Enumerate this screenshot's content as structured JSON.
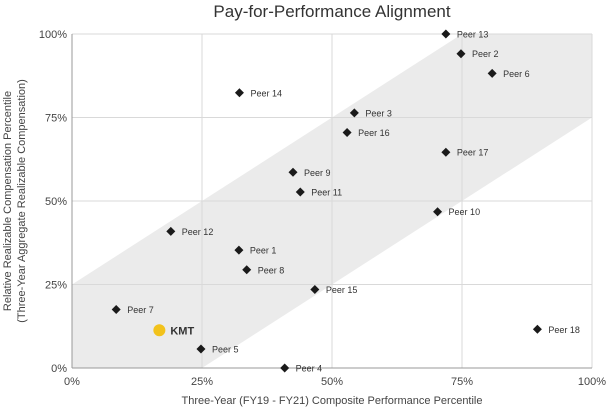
{
  "chart_data": {
    "type": "scatter",
    "title": "Pay-for-Performance Alignment",
    "xlabel": "Three-Year (FY19 - FY21) Composite Performance Percentile",
    "ylabel": [
      "Relative Realizable Compensation Percentile",
      "(Three-Year Aggregate Realizable Compensation)"
    ],
    "xlim": [
      0,
      100
    ],
    "ylim": [
      0,
      100
    ],
    "x_ticks": [
      "0%",
      "25%",
      "50%",
      "75%",
      "100%"
    ],
    "y_ticks": [
      "0%",
      "25%",
      "50%",
      "75%",
      "100%"
    ],
    "grid": true,
    "alignment_band": {
      "offset": 25,
      "color": "#ebebeb"
    },
    "colors": {
      "peer": "#1a1a1a",
      "company": "#f2c21b",
      "grid": "#d9d9d9"
    },
    "points": [
      {
        "label": "Peer 1",
        "x": 32.1,
        "y": 35.3
      },
      {
        "label": "Peer 2",
        "x": 74.8,
        "y": 94.1
      },
      {
        "label": "Peer 3",
        "x": 54.3,
        "y": 76.4
      },
      {
        "label": "Peer 4",
        "x": 40.9,
        "y": 0
      },
      {
        "label": "Peer 5",
        "x": 24.8,
        "y": 5.7
      },
      {
        "label": "Peer 6",
        "x": 80.8,
        "y": 88.2
      },
      {
        "label": "Peer 7",
        "x": 8.5,
        "y": 17.5
      },
      {
        "label": "Peer 8",
        "x": 33.6,
        "y": 29.4
      },
      {
        "label": "Peer 9",
        "x": 42.5,
        "y": 58.6
      },
      {
        "label": "Peer 10",
        "x": 70.3,
        "y": 46.8
      },
      {
        "label": "Peer 11",
        "x": 43.9,
        "y": 52.7
      },
      {
        "label": "Peer 12",
        "x": 19.0,
        "y": 40.9
      },
      {
        "label": "Peer 13",
        "x": 71.9,
        "y": 100
      },
      {
        "label": "Peer 14",
        "x": 32.2,
        "y": 82.4
      },
      {
        "label": "Peer 15",
        "x": 46.7,
        "y": 23.5
      },
      {
        "label": "Peer 16",
        "x": 52.9,
        "y": 70.5
      },
      {
        "label": "Peer 17",
        "x": 71.9,
        "y": 64.6
      },
      {
        "label": "Peer 18",
        "x": 89.5,
        "y": 11.6
      }
    ],
    "company": {
      "label": "KMT",
      "x": 16.8,
      "y": 11.3
    }
  }
}
